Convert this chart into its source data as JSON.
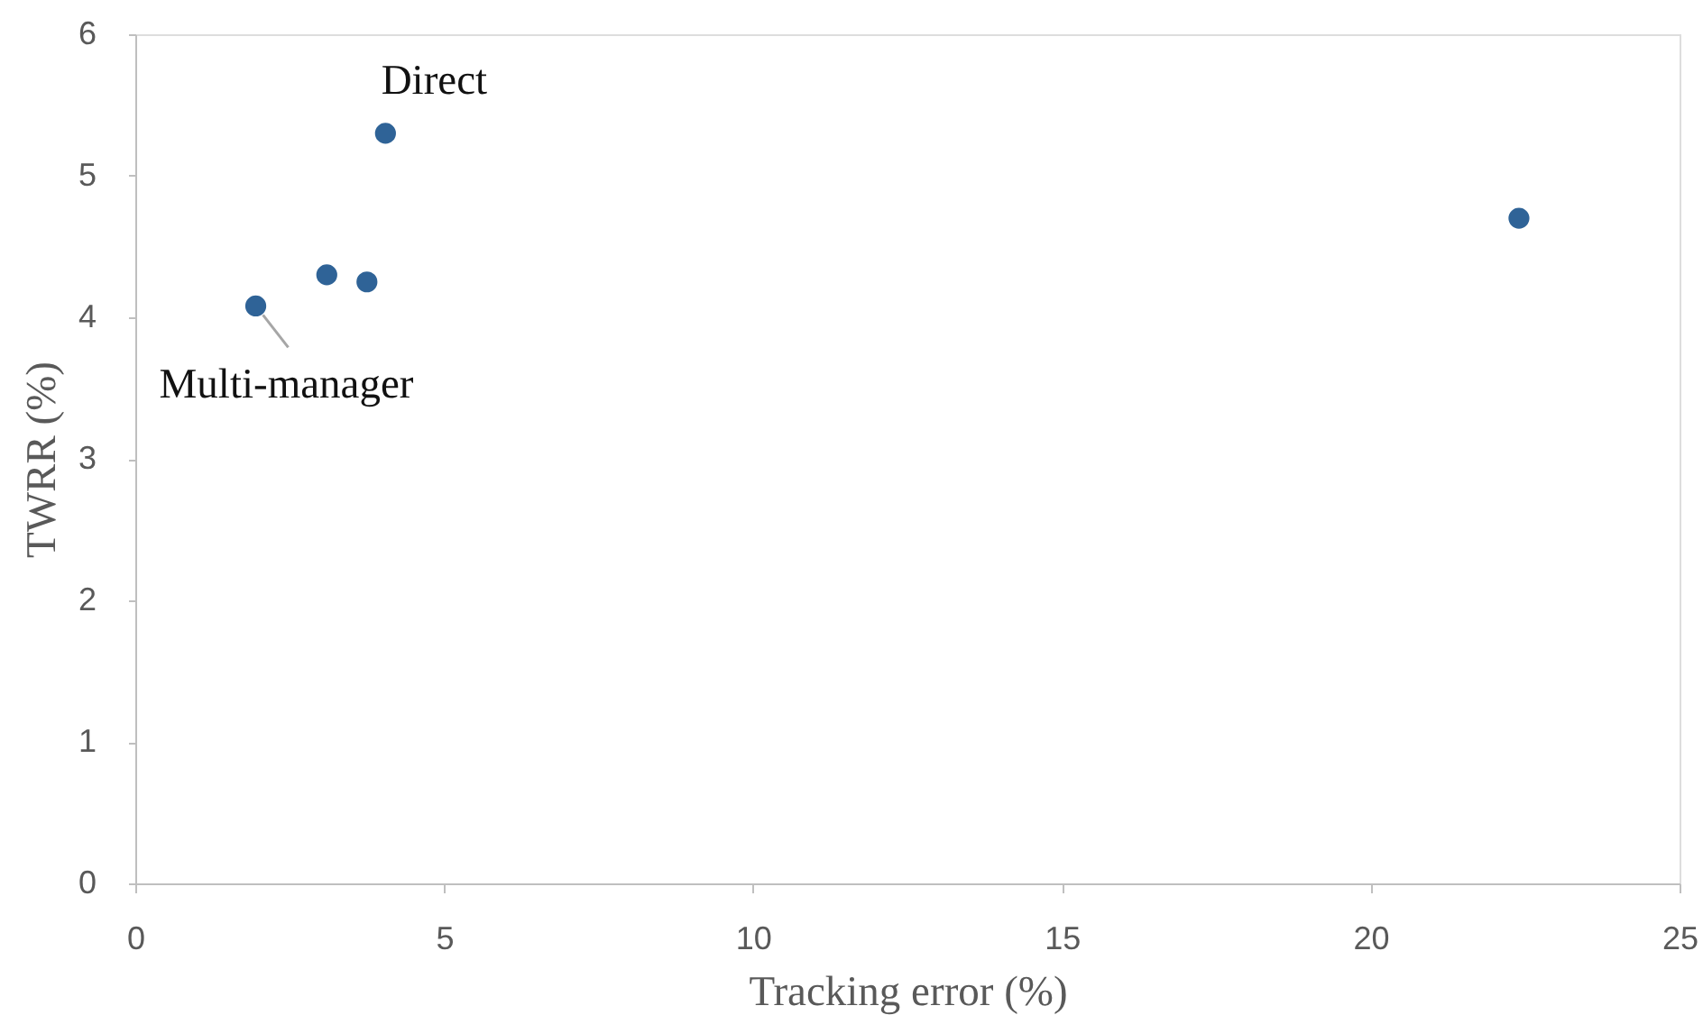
{
  "chart_data": {
    "type": "scatter",
    "xlabel": "Tracking error (%)",
    "ylabel": "TWRR (%)",
    "x": [
      1.95,
      3.1,
      3.75,
      4.05,
      22.4
    ],
    "series": [
      {
        "color": "#2f6397",
        "values": [
          4.08,
          4.3,
          4.25,
          5.3,
          4.7
        ]
      }
    ],
    "xlim": [
      0,
      25
    ],
    "ylim": [
      0,
      6
    ],
    "xticks": [
      0,
      5,
      10,
      15,
      20,
      25
    ],
    "yticks": [
      0,
      1,
      2,
      3,
      4,
      5,
      6
    ],
    "grid": false,
    "marker": "circle",
    "annotations": [
      {
        "text": "Direct",
        "x": 4.05,
        "y": 5.3
      },
      {
        "text": "Multi-manager",
        "x": 1.95,
        "y": 4.08
      }
    ]
  }
}
